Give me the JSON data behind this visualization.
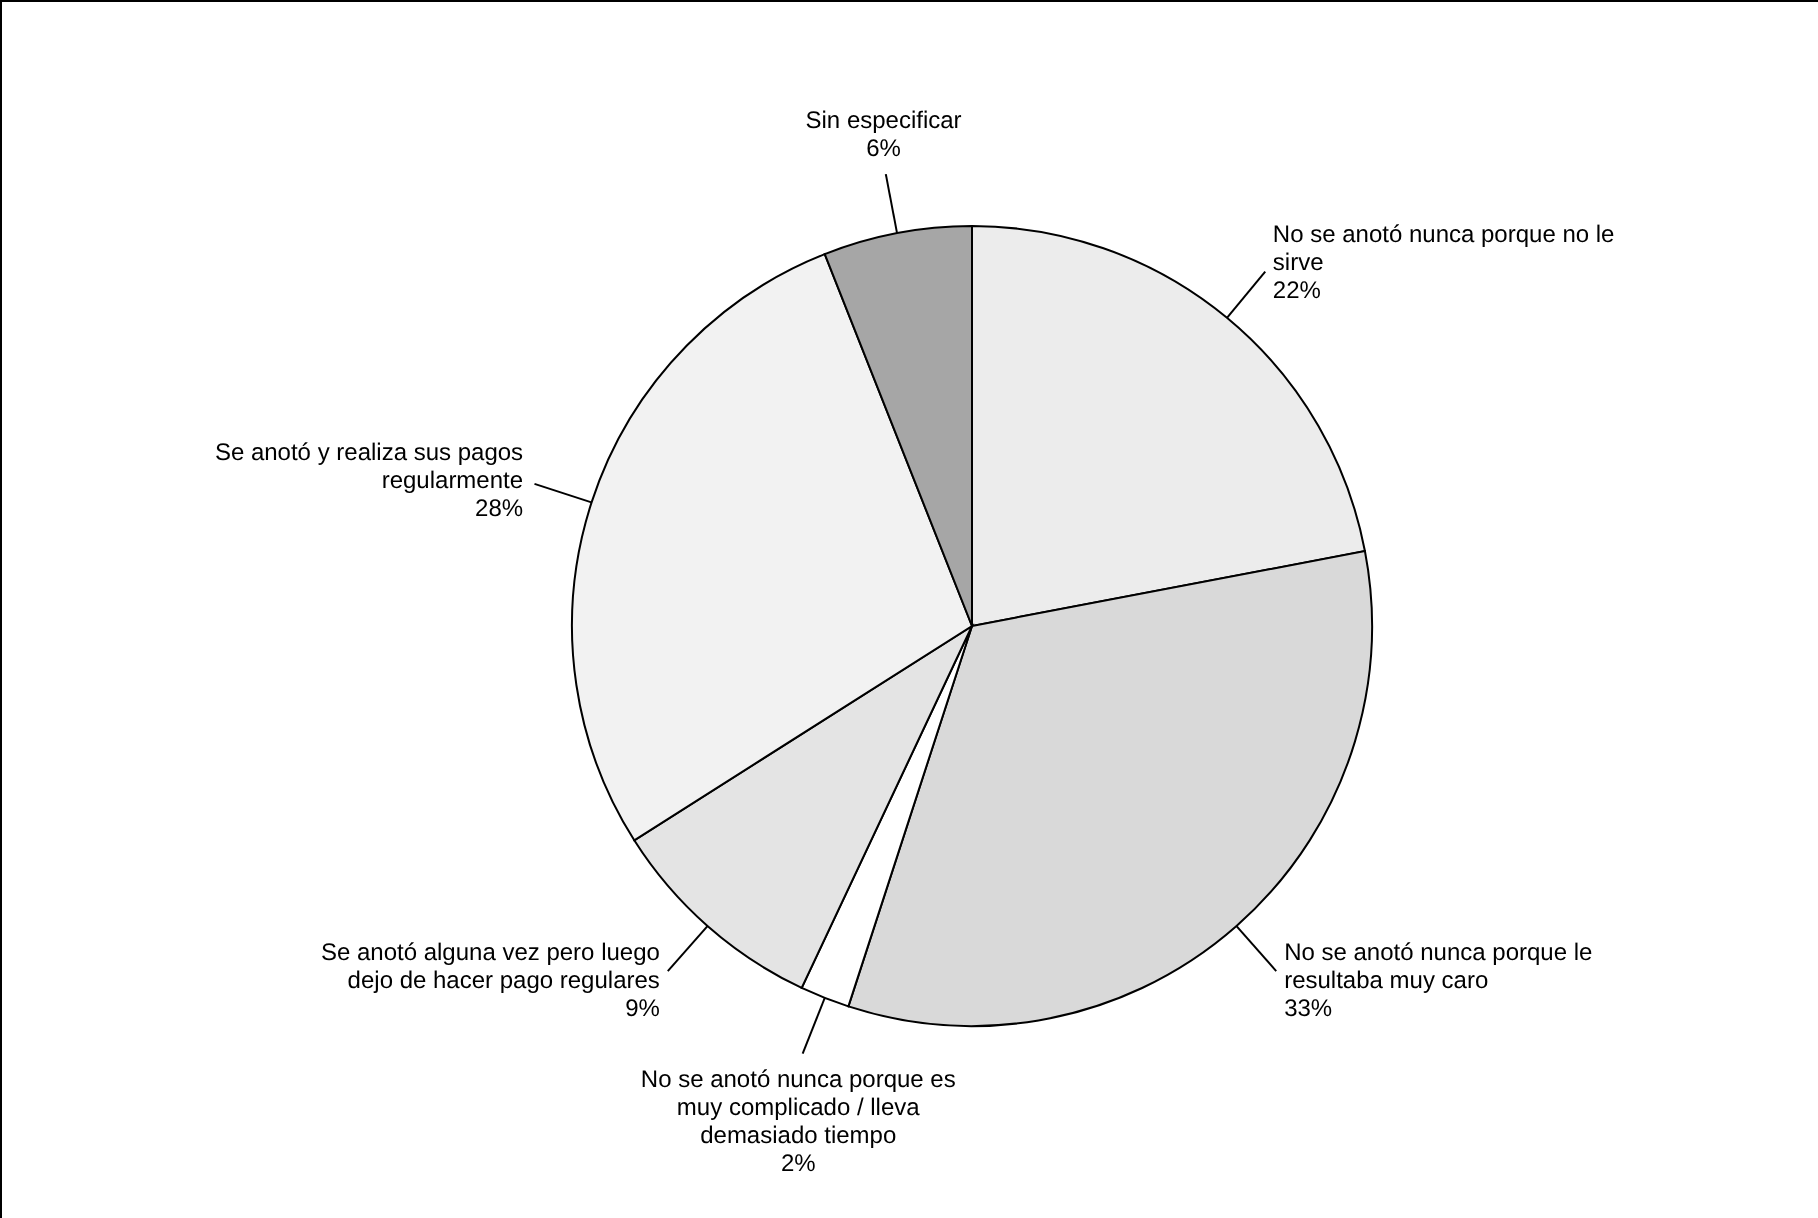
{
  "chart_data": {
    "type": "pie",
    "categories": [
      "No se anotó nunca porque no le sirve",
      "No se anotó nunca porque le resultaba muy caro",
      "No se anotó nunca porque es muy complicado / lleva demasiado tiempo",
      "Se anotó alguna vez pero luego dejo de hacer pago regulares",
      "Se anotó y realiza sus pagos regularmente",
      "Sin especificar"
    ],
    "values": [
      22,
      33,
      2,
      9,
      28,
      6
    ],
    "value_labels": [
      "22%",
      "33%",
      "2%",
      "9%",
      "28%",
      "6%"
    ],
    "colors": [
      "#ececec",
      "#d9d9d9",
      "#ffffff",
      "#e4e4e4",
      "#f2f2f2",
      "#a6a6a6"
    ]
  }
}
